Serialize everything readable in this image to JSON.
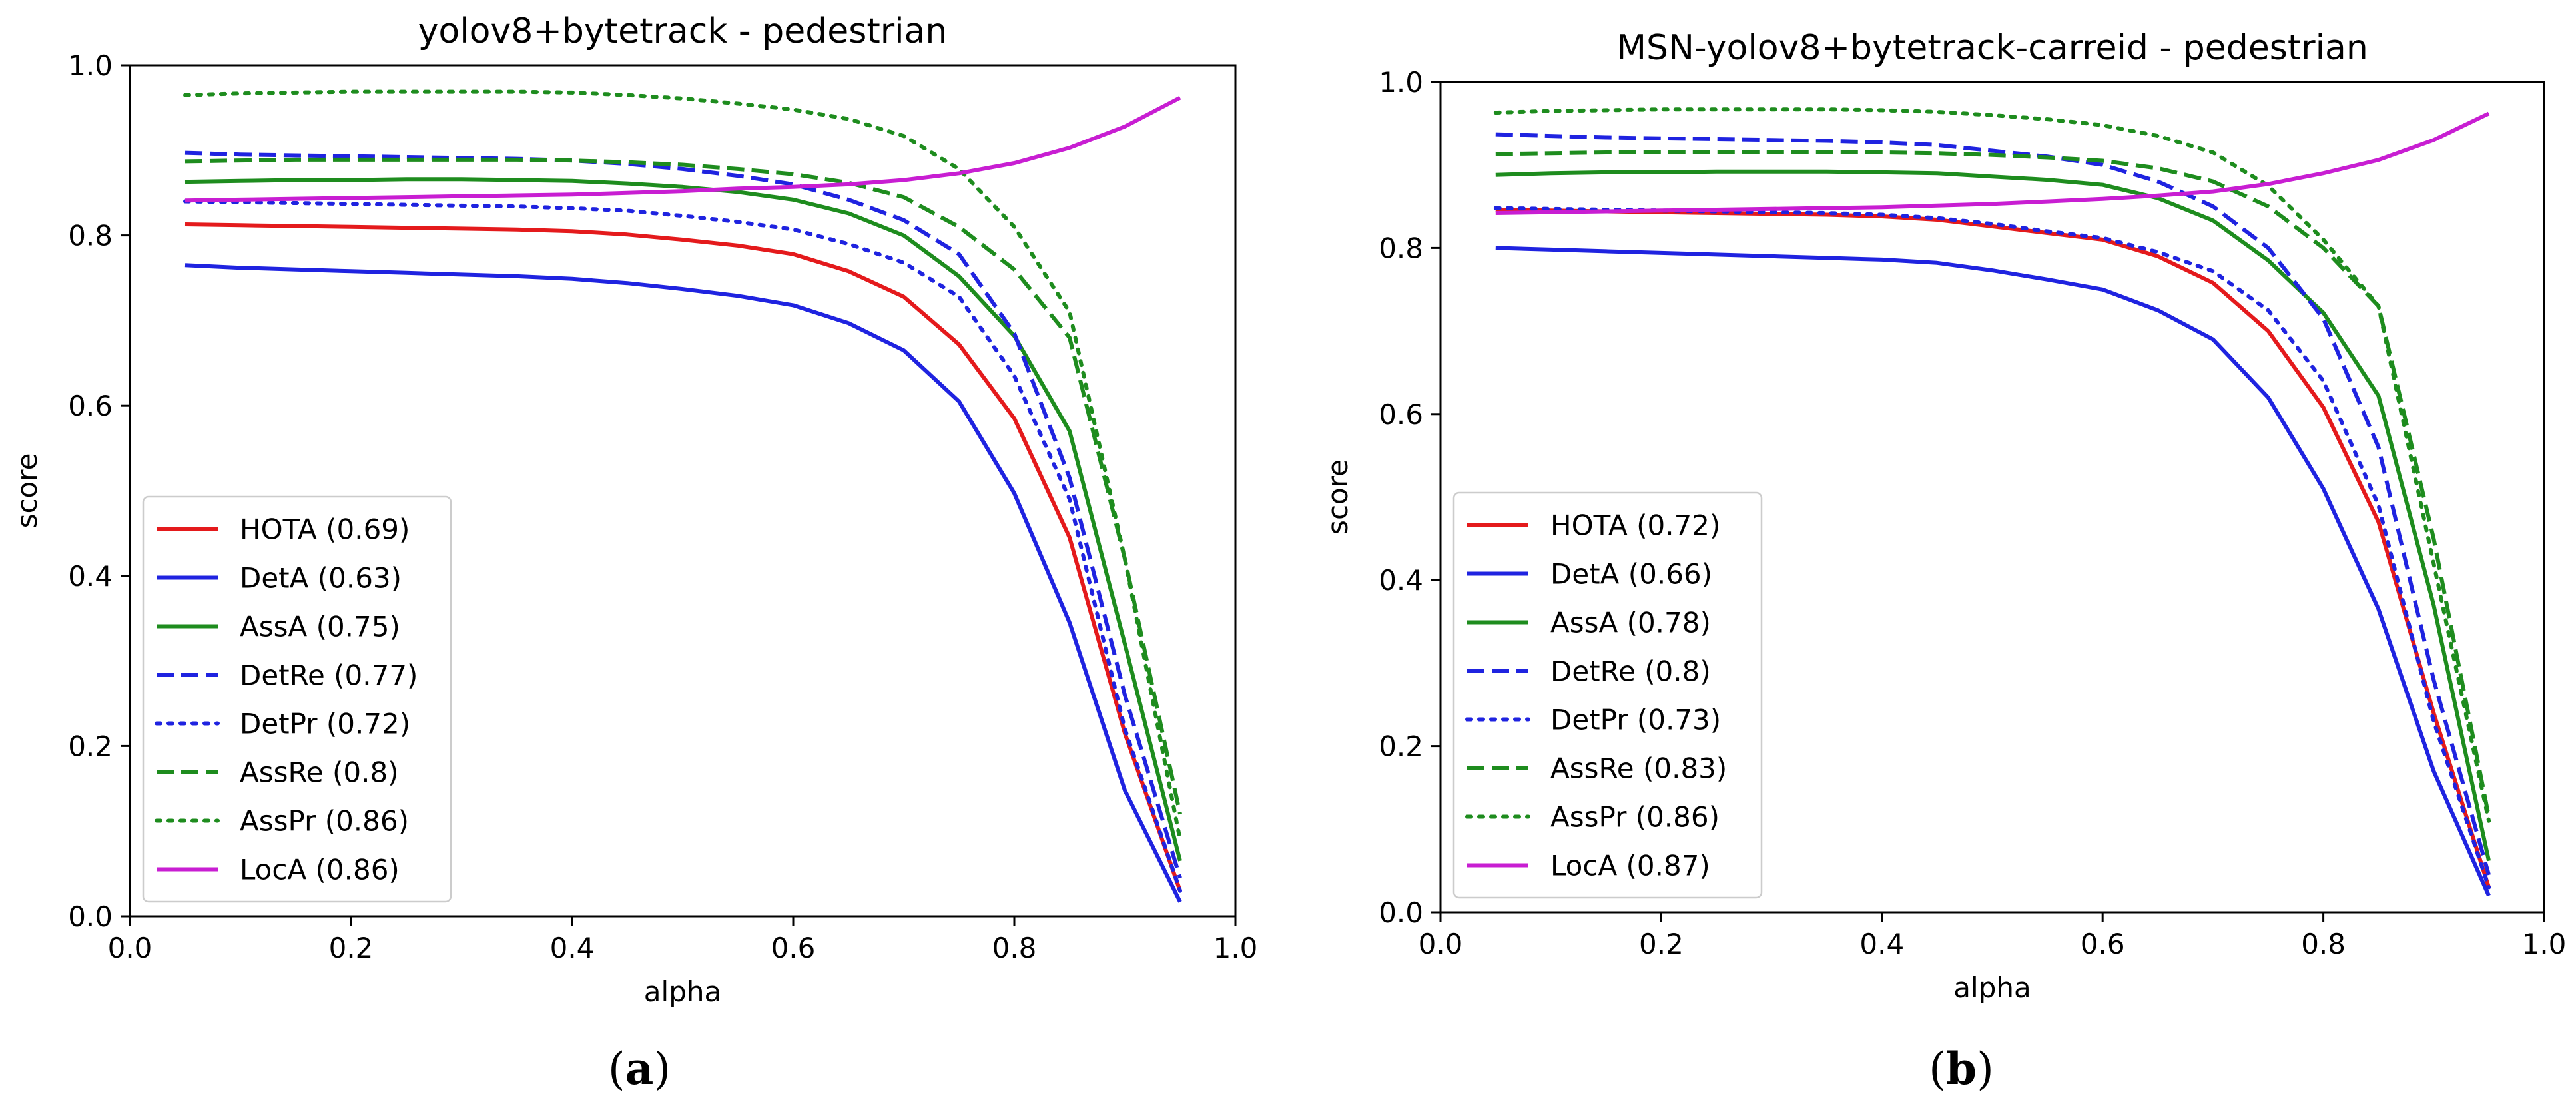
{
  "chart_data": [
    {
      "type": "line",
      "title": "yolov8+bytetrack - pedestrian",
      "xlabel": "alpha",
      "ylabel": "score",
      "xlim": [
        0.0,
        1.0
      ],
      "ylim": [
        0.0,
        1.0
      ],
      "xticks": [
        "0.0",
        "0.2",
        "0.4",
        "0.6",
        "0.8",
        "1.0"
      ],
      "yticks": [
        "0.0",
        "0.2",
        "0.4",
        "0.6",
        "0.8",
        "1.0"
      ],
      "caption_letter": "a",
      "legend_position": "lower-left",
      "x": [
        0.05,
        0.1,
        0.15,
        0.2,
        0.25,
        0.3,
        0.35,
        0.4,
        0.45,
        0.5,
        0.55,
        0.6,
        0.65,
        0.7,
        0.75,
        0.8,
        0.85,
        0.9,
        0.95
      ],
      "series": [
        {
          "name": "HOTA (0.69)",
          "color": "#e41a1c",
          "style": "solid",
          "values": [
            0.813,
            0.812,
            0.811,
            0.81,
            0.809,
            0.808,
            0.807,
            0.805,
            0.801,
            0.795,
            0.788,
            0.778,
            0.758,
            0.728,
            0.672,
            0.585,
            0.445,
            0.215,
            0.03
          ]
        },
        {
          "name": "DetA (0.63)",
          "color": "#1f23e0",
          "style": "solid",
          "values": [
            0.765,
            0.762,
            0.76,
            0.758,
            0.756,
            0.754,
            0.752,
            0.749,
            0.744,
            0.737,
            0.729,
            0.718,
            0.697,
            0.665,
            0.605,
            0.497,
            0.345,
            0.148,
            0.017
          ]
        },
        {
          "name": "AssA (0.75)",
          "color": "#1e8c1e",
          "style": "solid",
          "values": [
            0.863,
            0.864,
            0.865,
            0.865,
            0.866,
            0.866,
            0.865,
            0.864,
            0.861,
            0.857,
            0.851,
            0.842,
            0.826,
            0.8,
            0.752,
            0.682,
            0.57,
            0.32,
            0.065
          ]
        },
        {
          "name": "DetRe (0.77)",
          "color": "#1f23e0",
          "style": "dashed",
          "values": [
            0.897,
            0.895,
            0.894,
            0.893,
            0.892,
            0.891,
            0.89,
            0.888,
            0.884,
            0.878,
            0.87,
            0.86,
            0.842,
            0.818,
            0.778,
            0.685,
            0.515,
            0.26,
            0.045
          ]
        },
        {
          "name": "DetPr (0.72)",
          "color": "#1f23e0",
          "style": "dotted",
          "values": [
            0.84,
            0.839,
            0.838,
            0.837,
            0.836,
            0.835,
            0.834,
            0.832,
            0.829,
            0.823,
            0.816,
            0.807,
            0.79,
            0.768,
            0.728,
            0.635,
            0.49,
            0.22,
            0.03
          ]
        },
        {
          "name": "AssRe (0.8)",
          "color": "#1e8c1e",
          "style": "dashed",
          "values": [
            0.887,
            0.888,
            0.889,
            0.889,
            0.889,
            0.889,
            0.889,
            0.888,
            0.886,
            0.883,
            0.878,
            0.872,
            0.862,
            0.845,
            0.81,
            0.76,
            0.68,
            0.42,
            0.12
          ]
        },
        {
          "name": "AssPr (0.86)",
          "color": "#1e8c1e",
          "style": "dotted",
          "values": [
            0.965,
            0.967,
            0.968,
            0.969,
            0.969,
            0.969,
            0.969,
            0.968,
            0.965,
            0.961,
            0.955,
            0.948,
            0.937,
            0.917,
            0.878,
            0.81,
            0.71,
            0.42,
            0.09
          ]
        },
        {
          "name": "LocA (0.86)",
          "color": "#c81ed2",
          "style": "solid",
          "values": [
            0.841,
            0.842,
            0.843,
            0.844,
            0.845,
            0.846,
            0.847,
            0.848,
            0.85,
            0.852,
            0.855,
            0.857,
            0.86,
            0.865,
            0.873,
            0.885,
            0.903,
            0.928,
            0.962
          ]
        }
      ]
    },
    {
      "type": "line",
      "title": "MSN-yolov8+bytetrack-carreid - pedestrian",
      "xlabel": "alpha",
      "ylabel": "score",
      "xlim": [
        0.0,
        1.0
      ],
      "ylim": [
        0.0,
        1.0
      ],
      "xticks": [
        "0.0",
        "0.2",
        "0.4",
        "0.6",
        "0.8",
        "1.0"
      ],
      "yticks": [
        "0.0",
        "0.2",
        "0.4",
        "0.6",
        "0.8",
        "1.0"
      ],
      "caption_letter": "b",
      "legend_position": "lower-left",
      "x": [
        0.05,
        0.1,
        0.15,
        0.2,
        0.25,
        0.3,
        0.35,
        0.4,
        0.45,
        0.5,
        0.55,
        0.6,
        0.65,
        0.7,
        0.75,
        0.8,
        0.85,
        0.9,
        0.95
      ],
      "series": [
        {
          "name": "HOTA (0.72)",
          "color": "#e41a1c",
          "style": "solid",
          "values": [
            0.846,
            0.845,
            0.844,
            0.843,
            0.842,
            0.841,
            0.84,
            0.838,
            0.834,
            0.826,
            0.818,
            0.81,
            0.79,
            0.758,
            0.7,
            0.608,
            0.47,
            0.24,
            0.03
          ]
        },
        {
          "name": "DetA (0.66)",
          "color": "#1f23e0",
          "style": "solid",
          "values": [
            0.8,
            0.798,
            0.796,
            0.794,
            0.792,
            0.79,
            0.788,
            0.786,
            0.782,
            0.773,
            0.762,
            0.75,
            0.725,
            0.69,
            0.62,
            0.51,
            0.365,
            0.17,
            0.02
          ]
        },
        {
          "name": "AssA (0.78)",
          "color": "#1e8c1e",
          "style": "solid",
          "values": [
            0.888,
            0.89,
            0.891,
            0.891,
            0.892,
            0.892,
            0.892,
            0.891,
            0.89,
            0.886,
            0.882,
            0.876,
            0.86,
            0.833,
            0.785,
            0.722,
            0.622,
            0.37,
            0.062
          ]
        },
        {
          "name": "DetRe (0.8)",
          "color": "#1f23e0",
          "style": "dashed",
          "values": [
            0.937,
            0.935,
            0.933,
            0.932,
            0.931,
            0.93,
            0.929,
            0.927,
            0.924,
            0.917,
            0.91,
            0.9,
            0.88,
            0.85,
            0.8,
            0.715,
            0.56,
            0.28,
            0.045
          ]
        },
        {
          "name": "DetPr (0.73)",
          "color": "#1f23e0",
          "style": "dotted",
          "values": [
            0.848,
            0.847,
            0.846,
            0.845,
            0.844,
            0.843,
            0.842,
            0.84,
            0.836,
            0.829,
            0.82,
            0.812,
            0.795,
            0.772,
            0.725,
            0.64,
            0.49,
            0.23,
            0.03
          ]
        },
        {
          "name": "AssRe (0.83)",
          "color": "#1e8c1e",
          "style": "dashed",
          "values": [
            0.913,
            0.914,
            0.915,
            0.915,
            0.915,
            0.915,
            0.915,
            0.915,
            0.914,
            0.912,
            0.909,
            0.905,
            0.896,
            0.88,
            0.85,
            0.8,
            0.73,
            0.45,
            0.115
          ]
        },
        {
          "name": "AssPr (0.86)",
          "color": "#1e8c1e",
          "style": "dotted",
          "values": [
            0.963,
            0.965,
            0.966,
            0.967,
            0.967,
            0.967,
            0.967,
            0.966,
            0.964,
            0.96,
            0.955,
            0.948,
            0.935,
            0.915,
            0.875,
            0.81,
            0.73,
            0.42,
            0.11
          ]
        },
        {
          "name": "LocA (0.87)",
          "color": "#c81ed2",
          "style": "solid",
          "values": [
            0.842,
            0.843,
            0.844,
            0.845,
            0.846,
            0.847,
            0.848,
            0.849,
            0.851,
            0.853,
            0.856,
            0.859,
            0.863,
            0.868,
            0.877,
            0.89,
            0.906,
            0.93,
            0.962
          ]
        }
      ]
    }
  ]
}
